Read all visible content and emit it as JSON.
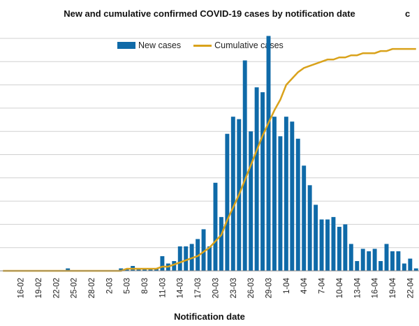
{
  "chart_data": {
    "type": "bar",
    "title": "New and cumulative confirmed COVID-19 cases by notification date",
    "title_extra": "c",
    "xlabel": "Notification date",
    "ylabel": "",
    "legend": {
      "placement": "top-center",
      "entries": [
        "New cases",
        "Cumulative cases"
      ]
    },
    "grid": true,
    "colors": {
      "bars": "#0f6aa8",
      "line": "#d9a21b",
      "grid": "#d0d0d0"
    },
    "tick_labels": [
      "16-02",
      "19-02",
      "22-02",
      "25-02",
      "28-02",
      "2-03",
      "5-03",
      "8-03",
      "11-03",
      "14-03",
      "17-03",
      "20-03",
      "23-03",
      "26-03",
      "29-03",
      "1-04",
      "4-04",
      "7-04",
      "10-04",
      "13-04",
      "16-04",
      "19-04",
      "22-04"
    ],
    "categories": [
      "13-02",
      "14-02",
      "15-02",
      "16-02",
      "17-02",
      "18-02",
      "19-02",
      "20-02",
      "21-02",
      "22-02",
      "23-02",
      "24-02",
      "25-02",
      "26-02",
      "27-02",
      "28-02",
      "29-02",
      "1-03",
      "2-03",
      "3-03",
      "4-03",
      "5-03",
      "6-03",
      "7-03",
      "8-03",
      "9-03",
      "10-03",
      "11-03",
      "12-03",
      "13-03",
      "14-03",
      "15-03",
      "16-03",
      "17-03",
      "18-03",
      "19-03",
      "20-03",
      "21-03",
      "22-03",
      "23-03",
      "24-03",
      "25-03",
      "26-03",
      "27-03",
      "28-03",
      "29-03",
      "30-03",
      "31-03",
      "1-04",
      "2-04",
      "3-04",
      "4-04",
      "5-04",
      "6-04",
      "7-04",
      "8-04",
      "9-04",
      "10-04",
      "11-04",
      "12-04",
      "13-04",
      "14-04",
      "15-04",
      "16-04",
      "17-04",
      "18-04",
      "19-04",
      "20-04",
      "21-04",
      "22-04",
      "23-04"
    ],
    "ylim": [
      0,
      100
    ],
    "y_max_right": 100,
    "series": [
      {
        "name": "New cases",
        "type": "bar",
        "values": [
          0,
          0,
          0,
          0,
          0,
          0,
          0,
          0,
          0,
          0,
          0,
          1,
          0,
          0,
          0,
          0,
          0,
          0,
          0,
          0,
          1,
          1,
          2,
          1,
          1,
          1,
          1,
          6,
          3,
          4,
          10,
          10,
          11,
          13,
          17,
          10,
          36,
          22,
          56,
          63,
          62,
          86,
          57,
          75,
          73,
          96,
          63,
          55,
          63,
          61,
          54,
          43,
          35,
          27,
          21,
          21,
          22,
          18,
          19,
          11,
          4,
          9,
          8,
          9,
          4,
          11,
          8,
          8,
          3,
          5,
          1
        ],
        "y_scale_max": 95
      },
      {
        "name": "Cumulative cases",
        "type": "line",
        "values": [
          0,
          0,
          0,
          0,
          0,
          0,
          0,
          0,
          0,
          0,
          0,
          0,
          0,
          0,
          0,
          0,
          0,
          0,
          0,
          0,
          0,
          1,
          1,
          1,
          1,
          1,
          1,
          2,
          2,
          3,
          4,
          5,
          6,
          7,
          9,
          11,
          14,
          17,
          24,
          30,
          36,
          43,
          50,
          57,
          64,
          70,
          76,
          81,
          88,
          91,
          94,
          96,
          97,
          98,
          99,
          100,
          100,
          101,
          101,
          102,
          102,
          103,
          103,
          103,
          104,
          104,
          105,
          105,
          105,
          105,
          105
        ]
      }
    ]
  }
}
